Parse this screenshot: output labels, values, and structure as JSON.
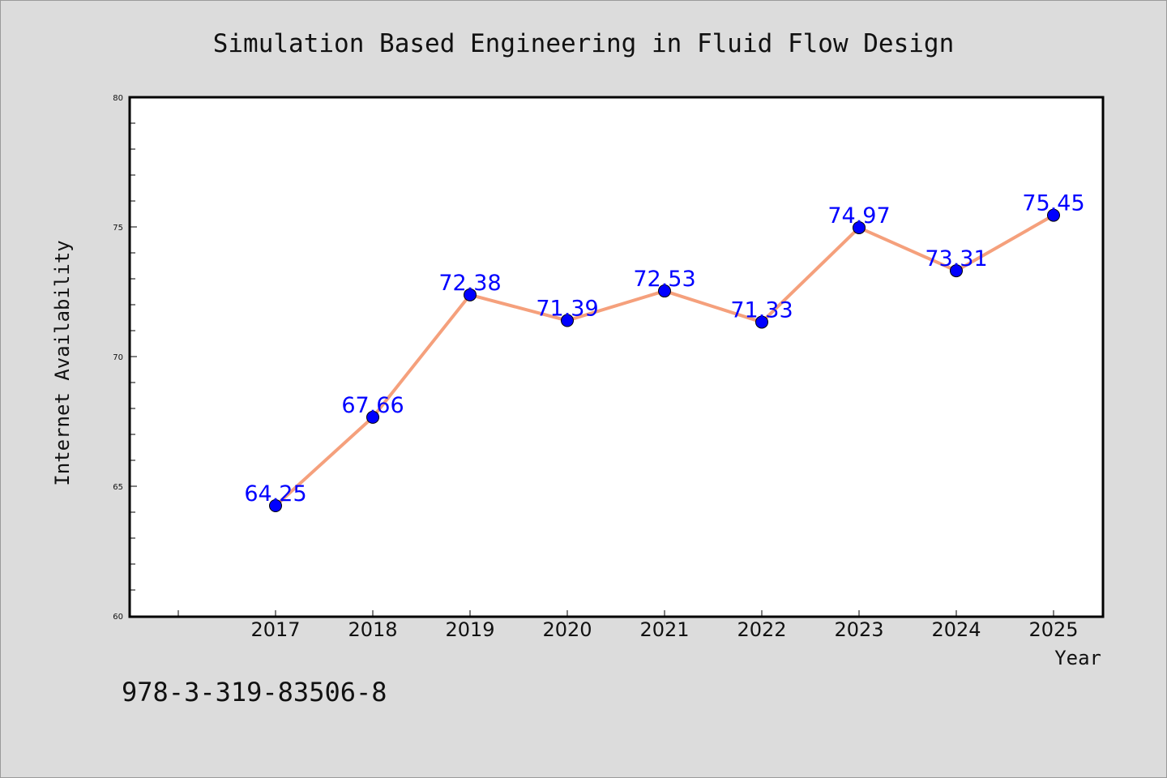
{
  "chart_data": {
    "type": "line",
    "title": "Simulation Based Engineering in Fluid Flow Design",
    "xlabel": "Year",
    "ylabel": "Internet Availability",
    "categories": [
      "2017",
      "2018",
      "2019",
      "2020",
      "2021",
      "2022",
      "2023",
      "2024",
      "2025"
    ],
    "series": [
      {
        "values": [
          64.25,
          67.66,
          72.38,
          71.39,
          72.53,
          71.33,
          74.97,
          73.31,
          75.45
        ],
        "labels": [
          "64.25",
          "67.66",
          "72.38",
          "71.39",
          "72.53",
          "71.33",
          "74.97",
          "73.31",
          "75.45"
        ]
      }
    ],
    "ylim": [
      60,
      80
    ],
    "yticks": [
      "60",
      "65",
      "70",
      "75",
      "80"
    ],
    "grid": false,
    "legend": "none"
  },
  "footnote": "978-3-319-83506-8",
  "colors": {
    "background": "#dcdcdc",
    "plot_background": "#ffffff",
    "line": "#f5a07c",
    "marker": "#0000ff",
    "data_label": "#0000ff"
  }
}
